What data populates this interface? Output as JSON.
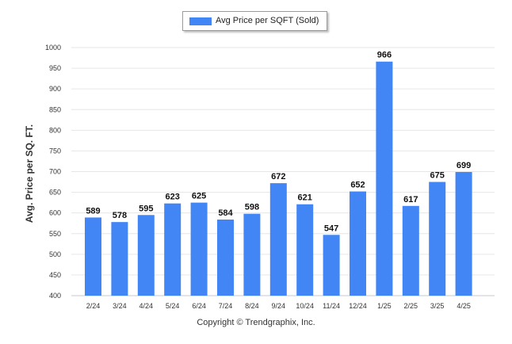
{
  "chart_data": {
    "type": "bar",
    "categories": [
      "2/24",
      "3/24",
      "4/24",
      "5/24",
      "6/24",
      "7/24",
      "8/24",
      "9/24",
      "10/24",
      "11/24",
      "12/24",
      "1/25",
      "2/25",
      "3/25",
      "4/25"
    ],
    "series": [
      {
        "name": "Avg Price per SQFT (Sold)",
        "values": [
          589,
          578,
          595,
          623,
          625,
          584,
          598,
          672,
          621,
          547,
          652,
          966,
          617,
          675,
          699
        ]
      }
    ],
    "ylabel": "Avg. Price per SQ. FT.",
    "xlabel": "",
    "ylim": [
      400,
      1000
    ],
    "yticks": [
      400,
      450,
      500,
      550,
      600,
      650,
      700,
      750,
      800,
      850,
      900,
      950,
      1000
    ],
    "grid": true,
    "legend": "top-center",
    "bar_color": "#4285f4"
  },
  "footer": {
    "copyright": "Copyright © Trendgraphix, Inc."
  }
}
